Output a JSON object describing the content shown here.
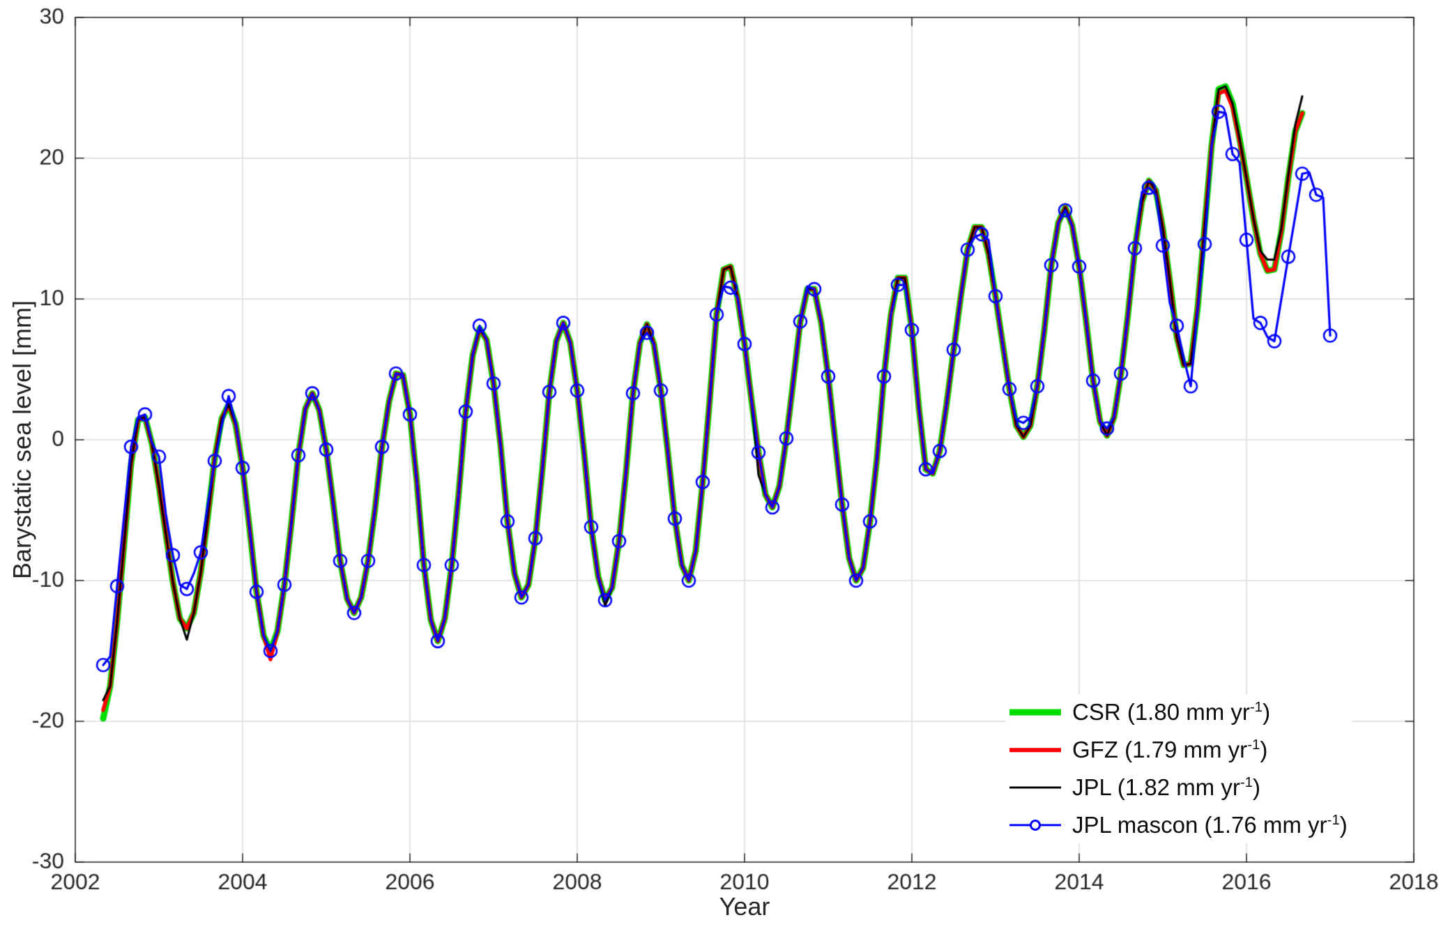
{
  "figure": {
    "background": "#ffffff"
  },
  "chart_data": {
    "type": "line",
    "title": "",
    "xlabel": "Year",
    "ylabel": "Barystatic sea level [mm]",
    "xlim": [
      2002,
      2018
    ],
    "ylim": [
      -30,
      30
    ],
    "xticks": [
      2002,
      2004,
      2006,
      2008,
      2010,
      2012,
      2014,
      2016,
      2018
    ],
    "yticks": [
      -30,
      -20,
      -10,
      0,
      10,
      20,
      30
    ],
    "grid": true,
    "grid_color": "#dcdcdc",
    "axis_color": "#262626",
    "legend_position": "lower-right",
    "series": [
      {
        "id": "csr",
        "name": "CSR (1.80 mm yr^-1)",
        "label_pre": "CSR (1.80 mm yr",
        "label_sup": "-1",
        "label_post": ")",
        "trend_mm_per_yr": 1.8,
        "color": "#00dd00",
        "line_width": 9,
        "x_start": 2002.3333,
        "x_step": 0.0833333,
        "values": [
          -19.8,
          -17.5,
          -12.9,
          -7.4,
          -1.7,
          1.4,
          1.6,
          -0.3,
          -3.3,
          -6.7,
          -10.1,
          -12.7,
          -13.4,
          -12.3,
          -9.4,
          -5.5,
          -1.3,
          1.5,
          2.5,
          1.1,
          -2.0,
          -6.3,
          -10.8,
          -13.9,
          -15.0,
          -13.6,
          -10.3,
          -5.9,
          -1.1,
          2.2,
          3.3,
          2.1,
          -0.7,
          -4.5,
          -8.6,
          -11.3,
          -12.3,
          -11.2,
          -8.6,
          -4.9,
          -0.5,
          2.7,
          4.7,
          4.6,
          1.8,
          -3.0,
          -8.9,
          -12.8,
          -14.3,
          -12.7,
          -8.9,
          -3.8,
          2.0,
          6.0,
          7.9,
          7.1,
          4.0,
          -0.4,
          -5.8,
          -9.5,
          -11.2,
          -10.3,
          -7.0,
          -2.1,
          3.4,
          7.0,
          8.3,
          6.9,
          3.5,
          -1.0,
          -6.2,
          -9.7,
          -11.4,
          -10.5,
          -7.2,
          -2.3,
          3.3,
          6.9,
          8.2,
          6.8,
          3.5,
          -0.9,
          -5.6,
          -8.9,
          -10.0,
          -7.9,
          -3.0,
          2.8,
          8.9,
          12.1,
          12.3,
          10.1,
          6.8,
          2.8,
          -0.9,
          -3.9,
          -4.8,
          -3.3,
          0.1,
          4.2,
          8.4,
          10.7,
          10.7,
          8.3,
          4.5,
          -0.1,
          -4.6,
          -8.4,
          -10.0,
          -9.1,
          -5.8,
          -1.3,
          4.5,
          8.9,
          11.5,
          11.5,
          7.8,
          2.3,
          -2.1,
          -2.4,
          -0.8,
          2.6,
          6.4,
          10.1,
          13.5,
          15.1,
          15.1,
          13.2,
          10.2,
          6.9,
          3.6,
          1.0,
          0.2,
          1.0,
          3.8,
          7.8,
          12.4,
          15.4,
          16.5,
          15.2,
          12.3,
          8.4,
          4.2,
          1.3,
          0.3,
          1.6,
          4.7,
          8.9,
          13.6,
          16.9,
          18.4,
          17.7,
          15.0,
          11.3,
          7.3,
          5.3,
          5.4,
          9.4,
          15.2,
          20.9,
          24.9,
          25.1,
          23.9,
          21.4,
          18.6,
          15.7,
          13.2,
          12.0,
          12.1,
          14.8,
          18.6,
          21.9,
          23.2
        ]
      },
      {
        "id": "gfz",
        "name": "GFZ (1.79 mm yr^-1)",
        "label_pre": "GFZ (1.79 mm yr",
        "label_sup": "-1",
        "label_post": ")",
        "trend_mm_per_yr": 1.79,
        "color": "#ff0000",
        "line_width": 5.5,
        "x_start": 2002.3333,
        "x_step": 0.0833333,
        "values": [
          -19.2,
          -17.5,
          -12.9,
          -7.4,
          -1.7,
          1.4,
          1.6,
          -0.3,
          -3.3,
          -6.7,
          -10.1,
          -12.7,
          -13.4,
          -12.3,
          -9.4,
          -5.5,
          -1.3,
          1.5,
          2.5,
          1.1,
          -2.0,
          -6.3,
          -10.8,
          -13.9,
          -15.6,
          -13.6,
          -10.3,
          -5.9,
          -1.1,
          2.2,
          3.3,
          2.1,
          -0.7,
          -4.5,
          -8.6,
          -11.3,
          -12.3,
          -11.2,
          -8.6,
          -4.9,
          -0.5,
          2.7,
          4.7,
          4.6,
          1.8,
          -3.0,
          -8.9,
          -12.8,
          -14.3,
          -12.7,
          -8.9,
          -3.8,
          2.0,
          6.0,
          7.9,
          7.1,
          4.0,
          -0.4,
          -5.8,
          -9.5,
          -11.2,
          -10.3,
          -7.0,
          -2.1,
          3.4,
          7.0,
          8.3,
          6.9,
          3.5,
          -1.0,
          -6.2,
          -9.7,
          -11.4,
          -10.5,
          -7.2,
          -2.3,
          3.3,
          6.9,
          8.2,
          6.8,
          3.5,
          -0.9,
          -5.6,
          -8.9,
          -10.0,
          -7.9,
          -3.0,
          2.8,
          8.9,
          12.1,
          12.3,
          10.1,
          6.8,
          2.8,
          -0.9,
          -3.9,
          -4.8,
          -3.3,
          0.1,
          4.2,
          8.4,
          10.7,
          10.7,
          8.3,
          4.5,
          -0.1,
          -4.6,
          -8.4,
          -10.0,
          -9.1,
          -5.8,
          -1.3,
          4.5,
          8.9,
          11.5,
          11.5,
          7.8,
          2.3,
          -2.1,
          -2.4,
          -0.8,
          2.6,
          6.4,
          10.1,
          13.5,
          15.1,
          15.1,
          13.2,
          10.2,
          6.9,
          3.6,
          1.0,
          0.2,
          1.0,
          3.8,
          7.8,
          12.4,
          15.4,
          16.5,
          15.2,
          12.3,
          8.4,
          4.2,
          1.3,
          0.3,
          1.6,
          4.7,
          8.9,
          13.6,
          16.9,
          18.4,
          17.7,
          15.0,
          11.3,
          7.3,
          5.3,
          5.4,
          9.4,
          15.2,
          20.9,
          24.6,
          24.8,
          23.6,
          21.2,
          18.6,
          15.7,
          13.2,
          12.0,
          12.1,
          14.8,
          18.6,
          21.9,
          23.2
        ]
      },
      {
        "id": "jpl",
        "name": "JPL (1.82 mm yr^-1)",
        "label_pre": "JPL (1.82 mm yr",
        "label_sup": "-1",
        "label_post": ")",
        "trend_mm_per_yr": 1.82,
        "color": "#000000",
        "line_width": 3,
        "x_start": 2002.3333,
        "x_step": 0.0833333,
        "values": [
          -18.5,
          -17.5,
          -12.9,
          -7.4,
          -1.7,
          1.4,
          1.6,
          -0.3,
          -3.3,
          -6.7,
          -10.1,
          -12.7,
          -14.2,
          -12.3,
          -9.4,
          -5.5,
          -1.3,
          1.5,
          2.5,
          1.1,
          -2.0,
          -6.3,
          -10.8,
          -13.9,
          -15.0,
          -13.6,
          -10.3,
          -5.9,
          -1.1,
          2.2,
          3.3,
          2.1,
          -0.7,
          -4.5,
          -8.6,
          -11.3,
          -12.3,
          -11.2,
          -8.6,
          -4.9,
          -0.5,
          2.7,
          4.7,
          4.6,
          1.8,
          -3.0,
          -8.9,
          -12.8,
          -14.3,
          -12.7,
          -8.9,
          -3.8,
          2.0,
          6.0,
          7.9,
          7.1,
          4.0,
          -0.4,
          -5.8,
          -9.5,
          -11.2,
          -10.3,
          -7.0,
          -2.1,
          3.4,
          7.0,
          8.3,
          6.9,
          3.5,
          -1.0,
          -6.2,
          -9.7,
          -11.8,
          -10.5,
          -7.2,
          -2.3,
          3.3,
          6.9,
          8.2,
          6.8,
          3.5,
          -0.9,
          -5.6,
          -8.9,
          -10.0,
          -7.9,
          -3.0,
          2.8,
          8.9,
          12.1,
          12.3,
          10.1,
          6.8,
          2.8,
          -2.5,
          -3.9,
          -4.8,
          -3.3,
          0.1,
          4.2,
          8.4,
          10.7,
          10.7,
          8.3,
          4.5,
          -0.1,
          -4.6,
          -8.4,
          -10.0,
          -9.1,
          -5.8,
          -1.3,
          4.5,
          8.9,
          11.5,
          11.5,
          7.8,
          2.3,
          -2.1,
          -2.4,
          -0.8,
          2.6,
          6.4,
          10.1,
          13.5,
          15.1,
          15.1,
          13.2,
          10.2,
          6.9,
          3.6,
          1.0,
          0.2,
          1.0,
          3.8,
          7.8,
          12.4,
          15.4,
          16.5,
          15.2,
          12.3,
          8.4,
          4.2,
          1.3,
          0.3,
          1.6,
          4.7,
          8.9,
          13.6,
          16.9,
          18.4,
          17.7,
          15.0,
          11.3,
          7.3,
          5.3,
          5.4,
          9.4,
          15.2,
          20.9,
          24.9,
          25.1,
          23.9,
          21.4,
          18.6,
          15.7,
          13.4,
          12.8,
          12.8,
          15.0,
          18.8,
          22.4,
          24.4
        ]
      },
      {
        "id": "jpl-mascon",
        "name": "JPL mascon (1.76 mm yr^-1)",
        "label_pre": "JPL mascon (1.76 mm yr",
        "label_sup": "-1",
        "label_post": ")",
        "trend_mm_per_yr": 1.76,
        "color": "#0000ff",
        "line_width": 3.2,
        "marker": "o",
        "marker_size": 9,
        "marker_every": 2,
        "x_start": 2002.3333,
        "x_step": 0.0833333,
        "values": [
          -16.0,
          -15.4,
          -10.4,
          -5.4,
          -0.5,
          1.6,
          1.8,
          -0.2,
          -1.2,
          -5.3,
          -8.2,
          -10.3,
          -10.6,
          -9.5,
          -8.0,
          -4.6,
          -1.5,
          1.0,
          3.1,
          1.2,
          -2.0,
          -6.3,
          -10.8,
          -13.9,
          -15.0,
          -13.6,
          -10.3,
          -5.9,
          -1.1,
          2.2,
          3.3,
          2.1,
          -0.7,
          -4.5,
          -8.6,
          -11.3,
          -12.3,
          -11.2,
          -8.6,
          -4.9,
          -0.5,
          2.7,
          4.7,
          4.6,
          1.8,
          -3.0,
          -8.9,
          -12.8,
          -14.3,
          -12.7,
          -8.9,
          -3.8,
          2.0,
          6.0,
          8.1,
          7.1,
          4.0,
          -0.4,
          -5.8,
          -9.5,
          -11.2,
          -10.3,
          -7.0,
          -2.1,
          3.4,
          7.0,
          8.3,
          6.9,
          3.5,
          -1.0,
          -6.2,
          -9.7,
          -11.4,
          -10.5,
          -7.2,
          -2.3,
          3.3,
          6.9,
          7.6,
          6.8,
          3.5,
          -0.9,
          -5.6,
          -8.9,
          -10.0,
          -7.9,
          -3.0,
          2.8,
          8.9,
          10.9,
          10.8,
          10.1,
          6.8,
          2.8,
          -0.9,
          -3.9,
          -4.8,
          -3.3,
          0.1,
          4.2,
          8.4,
          10.9,
          10.7,
          8.3,
          4.5,
          -0.1,
          -4.6,
          -8.4,
          -10.0,
          -9.1,
          -5.8,
          -1.3,
          4.5,
          8.9,
          11.0,
          11.0,
          7.8,
          2.3,
          -2.1,
          -2.4,
          -0.8,
          2.6,
          6.4,
          10.1,
          13.5,
          14.4,
          14.6,
          14.2,
          10.2,
          6.9,
          3.6,
          1.4,
          1.2,
          1.6,
          3.8,
          7.8,
          12.4,
          15.4,
          16.3,
          15.2,
          12.3,
          8.4,
          4.2,
          1.3,
          0.8,
          1.6,
          4.7,
          8.9,
          13.6,
          17.6,
          17.9,
          17.4,
          13.8,
          9.7,
          8.1,
          5.8,
          3.8,
          9.3,
          13.9,
          20.9,
          23.3,
          23.2,
          20.3,
          19.7,
          14.2,
          8.6,
          8.3,
          7.3,
          7.0,
          10.0,
          13.0,
          15.9,
          18.9,
          19.0,
          17.4,
          17.2,
          7.4
        ]
      }
    ]
  }
}
